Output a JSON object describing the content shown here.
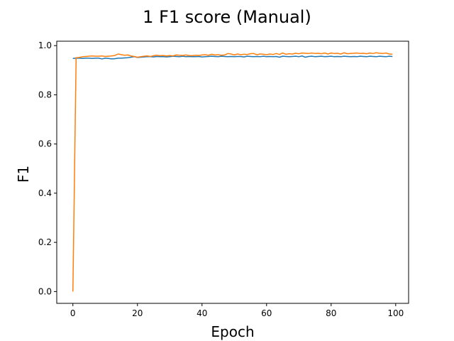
{
  "chart_data": {
    "type": "line",
    "title": "1 F1 score (Manual)",
    "xlabel": "Epoch",
    "ylabel": "F1",
    "xlim": [
      -5,
      104
    ],
    "ylim": [
      -0.048,
      1.018
    ],
    "x_ticks": [
      0,
      20,
      40,
      60,
      80,
      100
    ],
    "y_ticks": [
      0.0,
      0.2,
      0.4,
      0.6,
      0.8,
      1.0
    ],
    "x_tick_labels": [
      "0",
      "20",
      "40",
      "60",
      "80",
      "100"
    ],
    "y_tick_labels": [
      "0.0",
      "0.2",
      "0.4",
      "0.6",
      "0.8",
      "1.0"
    ],
    "grid": false,
    "legend": false,
    "x": [
      0,
      1,
      2,
      3,
      4,
      5,
      6,
      7,
      8,
      9,
      10,
      11,
      12,
      13,
      14,
      15,
      16,
      17,
      18,
      19,
      20,
      21,
      22,
      23,
      24,
      25,
      26,
      27,
      28,
      29,
      30,
      31,
      32,
      33,
      34,
      35,
      36,
      37,
      38,
      39,
      40,
      41,
      42,
      43,
      44,
      45,
      46,
      47,
      48,
      49,
      50,
      51,
      52,
      53,
      54,
      55,
      56,
      57,
      58,
      59,
      60,
      61,
      62,
      63,
      64,
      65,
      66,
      67,
      68,
      69,
      70,
      71,
      72,
      73,
      74,
      75,
      76,
      77,
      78,
      79,
      80,
      81,
      82,
      83,
      84,
      85,
      86,
      87,
      88,
      89,
      90,
      91,
      92,
      93,
      94,
      95,
      96,
      97,
      98,
      99
    ],
    "series": [
      {
        "color": "#1f77b4",
        "values": [
          0.948,
          0.949,
          0.949,
          0.948,
          0.949,
          0.949,
          0.948,
          0.949,
          0.949,
          0.946,
          0.949,
          0.948,
          0.946,
          0.947,
          0.949,
          0.949,
          0.95,
          0.951,
          0.953,
          0.955,
          0.952,
          0.953,
          0.954,
          0.955,
          0.955,
          0.954,
          0.956,
          0.955,
          0.955,
          0.954,
          0.955,
          0.957,
          0.956,
          0.955,
          0.957,
          0.955,
          0.956,
          0.955,
          0.955,
          0.956,
          0.954,
          0.955,
          0.956,
          0.957,
          0.956,
          0.955,
          0.957,
          0.956,
          0.955,
          0.956,
          0.955,
          0.956,
          0.956,
          0.954,
          0.957,
          0.956,
          0.955,
          0.956,
          0.955,
          0.957,
          0.955,
          0.956,
          0.955,
          0.956,
          0.953,
          0.957,
          0.956,
          0.955,
          0.956,
          0.957,
          0.955,
          0.958,
          0.953,
          0.956,
          0.957,
          0.955,
          0.956,
          0.957,
          0.955,
          0.956,
          0.957,
          0.955,
          0.956,
          0.955,
          0.957,
          0.956,
          0.955,
          0.956,
          0.955,
          0.957,
          0.956,
          0.955,
          0.957,
          0.956,
          0.955,
          0.957,
          0.956,
          0.955,
          0.957,
          0.956
        ]
      },
      {
        "color": "#ff7f0e",
        "values": [
          0.0,
          0.951,
          0.952,
          0.955,
          0.956,
          0.957,
          0.958,
          0.957,
          0.957,
          0.958,
          0.956,
          0.957,
          0.958,
          0.96,
          0.966,
          0.963,
          0.961,
          0.962,
          0.958,
          0.956,
          0.953,
          0.955,
          0.957,
          0.958,
          0.956,
          0.959,
          0.961,
          0.959,
          0.96,
          0.958,
          0.96,
          0.958,
          0.962,
          0.961,
          0.96,
          0.962,
          0.96,
          0.959,
          0.961,
          0.96,
          0.962,
          0.963,
          0.961,
          0.965,
          0.962,
          0.963,
          0.961,
          0.962,
          0.968,
          0.966,
          0.962,
          0.966,
          0.963,
          0.965,
          0.964,
          0.967,
          0.968,
          0.963,
          0.966,
          0.965,
          0.963,
          0.966,
          0.964,
          0.968,
          0.964,
          0.97,
          0.965,
          0.967,
          0.966,
          0.969,
          0.967,
          0.97,
          0.969,
          0.968,
          0.97,
          0.968,
          0.969,
          0.967,
          0.97,
          0.966,
          0.97,
          0.968,
          0.969,
          0.966,
          0.971,
          0.967,
          0.968,
          0.969,
          0.97,
          0.968,
          0.969,
          0.967,
          0.97,
          0.968,
          0.971,
          0.969,
          0.968,
          0.97,
          0.966,
          0.965
        ]
      }
    ]
  }
}
